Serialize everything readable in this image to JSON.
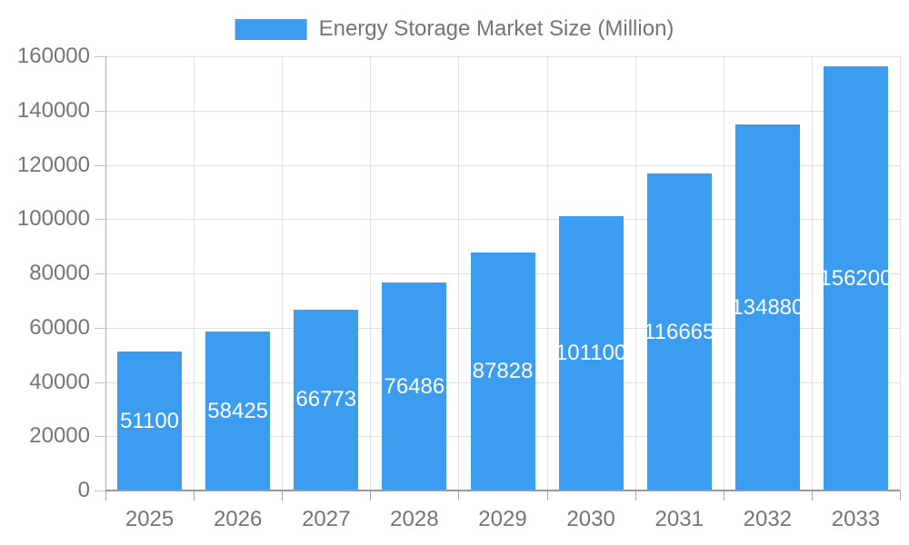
{
  "legend": {
    "label": "Energy Storage Market Size (Million)"
  },
  "chart_data": {
    "type": "bar",
    "title": "Energy Storage Market Size (Million)",
    "categories": [
      "2025",
      "2026",
      "2027",
      "2028",
      "2029",
      "2030",
      "2031",
      "2032",
      "2033"
    ],
    "values": [
      51100,
      58425,
      66773,
      76486,
      87828,
      101100,
      116665,
      134880,
      156200
    ],
    "series": [
      {
        "name": "Energy Storage Market Size (Million)",
        "values": [
          51100,
          58425,
          66773,
          76486,
          87828,
          101100,
          116665,
          134880,
          156200
        ]
      }
    ],
    "xlabel": "",
    "ylabel": "",
    "ylim": [
      0,
      160000
    ],
    "y_ticks": [
      0,
      20000,
      40000,
      60000,
      80000,
      100000,
      120000,
      140000,
      160000
    ],
    "y_tick_labels": [
      "0",
      "20000",
      "40000",
      "60000",
      "80000",
      "100000",
      "120000",
      "140000",
      "160000"
    ],
    "grid": true,
    "legend_position": "top",
    "bar_label_position": "inside-center",
    "colors": {
      "bar": "#3b9cf0",
      "bar_label": "#ffffff",
      "axis_text": "#757575",
      "grid_line": "#e0e0e0",
      "axis_line": "#999999"
    }
  }
}
